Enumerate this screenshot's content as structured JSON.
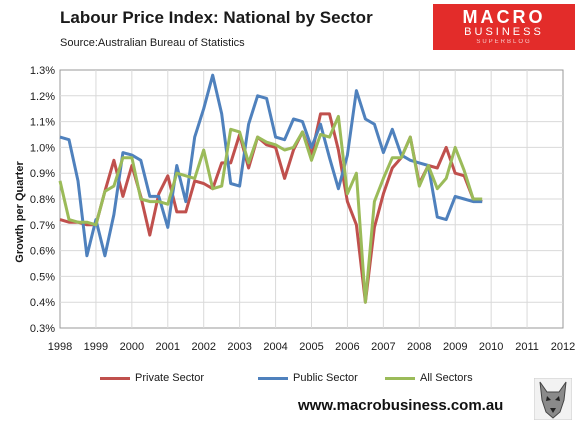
{
  "header": {
    "title": "Labour Price Index: National by Sector",
    "subtitle": "Source:Australian Bureau of Statistics"
  },
  "logo": {
    "line1": "MACRO",
    "line2": "BUSINESS",
    "line3": "SUPERBLOG",
    "bg_color": "#e32c2a"
  },
  "footer": {
    "website": "www.macrobusiness.com.au",
    "mascot_icon": "wolf-icon"
  },
  "chart_data": {
    "type": "line",
    "title": "Labour Price Index: National by Sector",
    "xlabel": "",
    "ylabel": "Growth per Quarter",
    "x_start": 1998.0,
    "x_step": 0.25,
    "xlim": [
      1998,
      2012
    ],
    "ylim": [
      0.3,
      1.3
    ],
    "y_ticks": [
      "0.3%",
      "0.4%",
      "0.5%",
      "0.6%",
      "0.7%",
      "0.8%",
      "0.9%",
      "1.0%",
      "1.1%",
      "1.2%",
      "1.3%"
    ],
    "x_ticks": [
      "1998",
      "1999",
      "2000",
      "2001",
      "2002",
      "2003",
      "2004",
      "2005",
      "2006",
      "2007",
      "2008",
      "2009",
      "2010",
      "2011",
      "2012"
    ],
    "grid": true,
    "legend_position": "bottom",
    "series": [
      {
        "name": "Private Sector",
        "color": "#c0504d",
        "values": [
          0.72,
          0.71,
          0.71,
          0.7,
          0.7,
          0.83,
          0.95,
          0.81,
          0.93,
          0.81,
          0.66,
          0.82,
          0.89,
          0.75,
          0.75,
          0.87,
          0.86,
          0.84,
          0.94,
          0.94,
          1.05,
          0.92,
          1.04,
          1.01,
          1.0,
          0.88,
          0.99,
          1.06,
          0.97,
          1.13,
          1.13,
          0.99,
          0.79,
          0.7,
          0.4,
          0.69,
          0.82,
          0.92,
          0.96,
          1.04,
          0.86,
          0.93,
          0.92,
          1.0,
          0.9,
          0.89,
          0.8,
          0.79
        ]
      },
      {
        "name": "Public Sector",
        "color": "#4f81bd",
        "values": [
          1.04,
          1.03,
          0.87,
          0.58,
          0.72,
          0.58,
          0.74,
          0.98,
          0.97,
          0.95,
          0.81,
          0.81,
          0.69,
          0.93,
          0.79,
          1.04,
          1.15,
          1.28,
          1.13,
          0.86,
          0.85,
          1.09,
          1.2,
          1.19,
          1.04,
          1.03,
          1.11,
          1.1,
          1.0,
          1.09,
          0.96,
          0.84,
          0.97,
          1.22,
          1.11,
          1.09,
          0.98,
          1.07,
          0.97,
          0.95,
          0.94,
          0.93,
          0.73,
          0.72,
          0.81,
          0.8,
          0.79,
          0.79
        ]
      },
      {
        "name": "All Sectors",
        "color": "#9bbb59",
        "values": [
          0.87,
          0.72,
          0.71,
          0.71,
          0.7,
          0.83,
          0.85,
          0.96,
          0.96,
          0.8,
          0.79,
          0.79,
          0.78,
          0.9,
          0.89,
          0.88,
          0.99,
          0.84,
          0.85,
          1.07,
          1.06,
          0.94,
          1.04,
          1.02,
          1.01,
          0.99,
          1.0,
          1.06,
          0.95,
          1.05,
          1.04,
          1.12,
          0.82,
          0.9,
          0.4,
          0.79,
          0.88,
          0.96,
          0.96,
          1.04,
          0.85,
          0.93,
          0.84,
          0.88,
          1.0,
          0.91,
          0.8,
          0.8
        ]
      }
    ]
  }
}
